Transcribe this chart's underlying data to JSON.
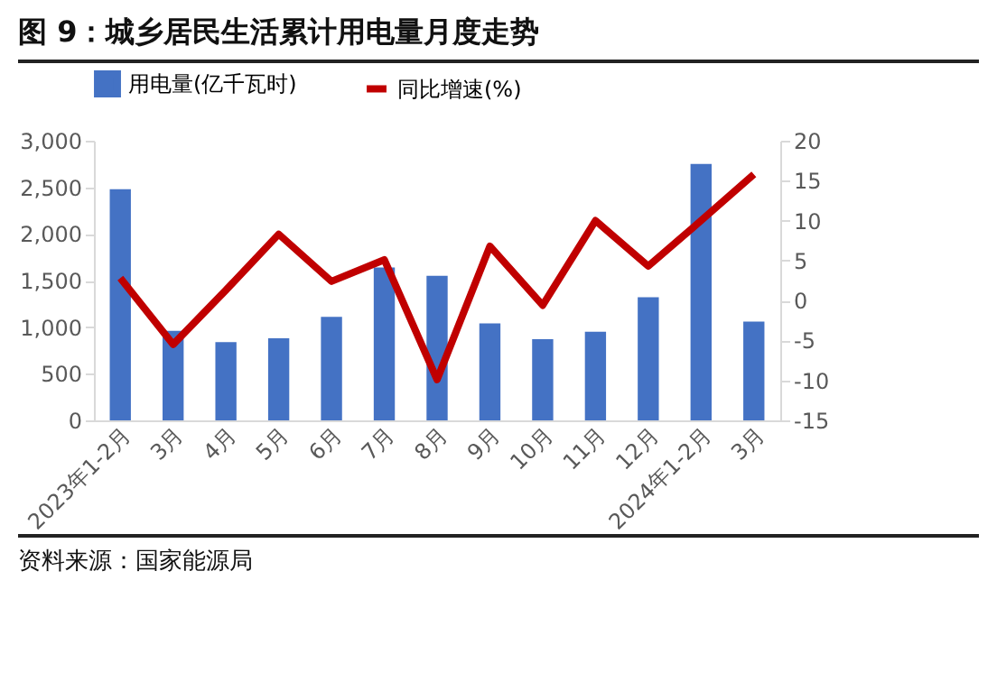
{
  "chart_data": {
    "type": "bar",
    "title": "图 9：城乡居民生活累计用电量月度走势",
    "categories": [
      "2023年1-2月",
      "3月",
      "4月",
      "5月",
      "6月",
      "7月",
      "8月",
      "9月",
      "10月",
      "11月",
      "12月",
      "2024年1-2月",
      "3月"
    ],
    "series": [
      {
        "name": "用电量(亿千瓦时)",
        "color": "#4472c4",
        "values": [
          2480,
          960,
          840,
          880,
          1110,
          1640,
          1550,
          1040,
          870,
          950,
          1320,
          2750,
          1060
        ]
      },
      {
        "name": "同比增速(%)",
        "type": "line",
        "axis": "y2",
        "color": "#c00000",
        "values": [
          2.8,
          -5.5,
          1.3,
          8.3,
          2.4,
          5.1,
          -9.9,
          6.8,
          -0.6,
          10.0,
          4.3,
          10.0,
          15.8
        ]
      }
    ],
    "ylim": [
      0,
      3000
    ],
    "yticks": [
      {
        "value": 0,
        "label": "0"
      },
      {
        "value": 500,
        "label": "500"
      },
      {
        "value": 1000,
        "label": "1,000"
      },
      {
        "value": 1500,
        "label": "1,500"
      },
      {
        "value": 2000,
        "label": "2,000"
      },
      {
        "value": 2500,
        "label": "2,500"
      },
      {
        "value": 3000,
        "label": "3,000"
      }
    ],
    "y2lim": [
      -15,
      20
    ],
    "y2ticks": [
      -15,
      -10,
      -5,
      0,
      5,
      10,
      15,
      20
    ],
    "legend": "top",
    "grid": false,
    "marker": "none",
    "line_style": "solid",
    "annotations": [
      "资料来源：国家能源局"
    ]
  }
}
